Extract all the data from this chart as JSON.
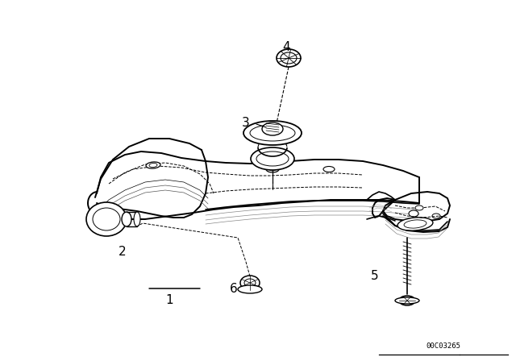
{
  "background_color": "#ffffff",
  "line_color": "#000000",
  "watermark": "00C03265",
  "fig_w": 6.4,
  "fig_h": 4.48,
  "dpi": 100
}
